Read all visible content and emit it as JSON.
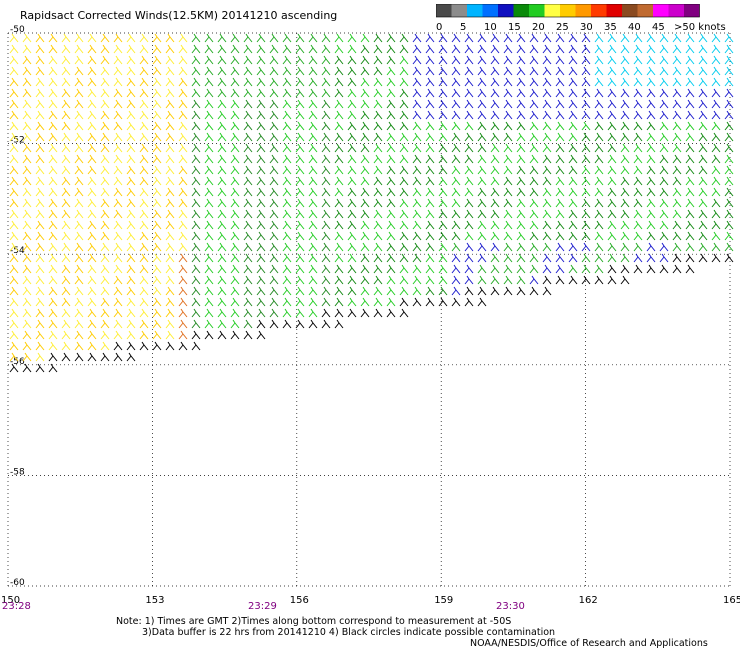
{
  "title": "Rapidsact Corrected Winds(12.5KM) 20141210 ascending",
  "legend": {
    "labels": [
      "0",
      "5",
      "10",
      "15",
      "20",
      "25",
      "30",
      "35",
      "40",
      "45",
      ">50 knots"
    ],
    "colors": [
      "#4a4a4a",
      "#8c8c8c",
      "#00b4ff",
      "#0070ff",
      "#1010c0",
      "#0a8a0a",
      "#22cc22",
      "#ffff44",
      "#ffcc00",
      "#ff9900",
      "#ff3b00",
      "#e00000",
      "#8a4a20",
      "#c06a30",
      "#ff00ff",
      "#cc00cc",
      "#800080"
    ]
  },
  "map": {
    "lat_labels": [
      "-50",
      "-52",
      "-54",
      "-56",
      "-58",
      "-60"
    ],
    "lon_labels": [
      "150",
      "153",
      "156",
      "159",
      "162",
      "165"
    ],
    "time_labels": [
      "23:28",
      "23:29",
      "23:30"
    ]
  },
  "notes": {
    "line1": "Note: 1) Times are GMT 2)Times along bottom correspond to measurement at -50S",
    "line2": "3)Data buffer is 22 hrs from 20141210 4) Black circles indicate possible contamination",
    "credit": "NOAA/NESDIS/Office of Research and Applications"
  }
}
